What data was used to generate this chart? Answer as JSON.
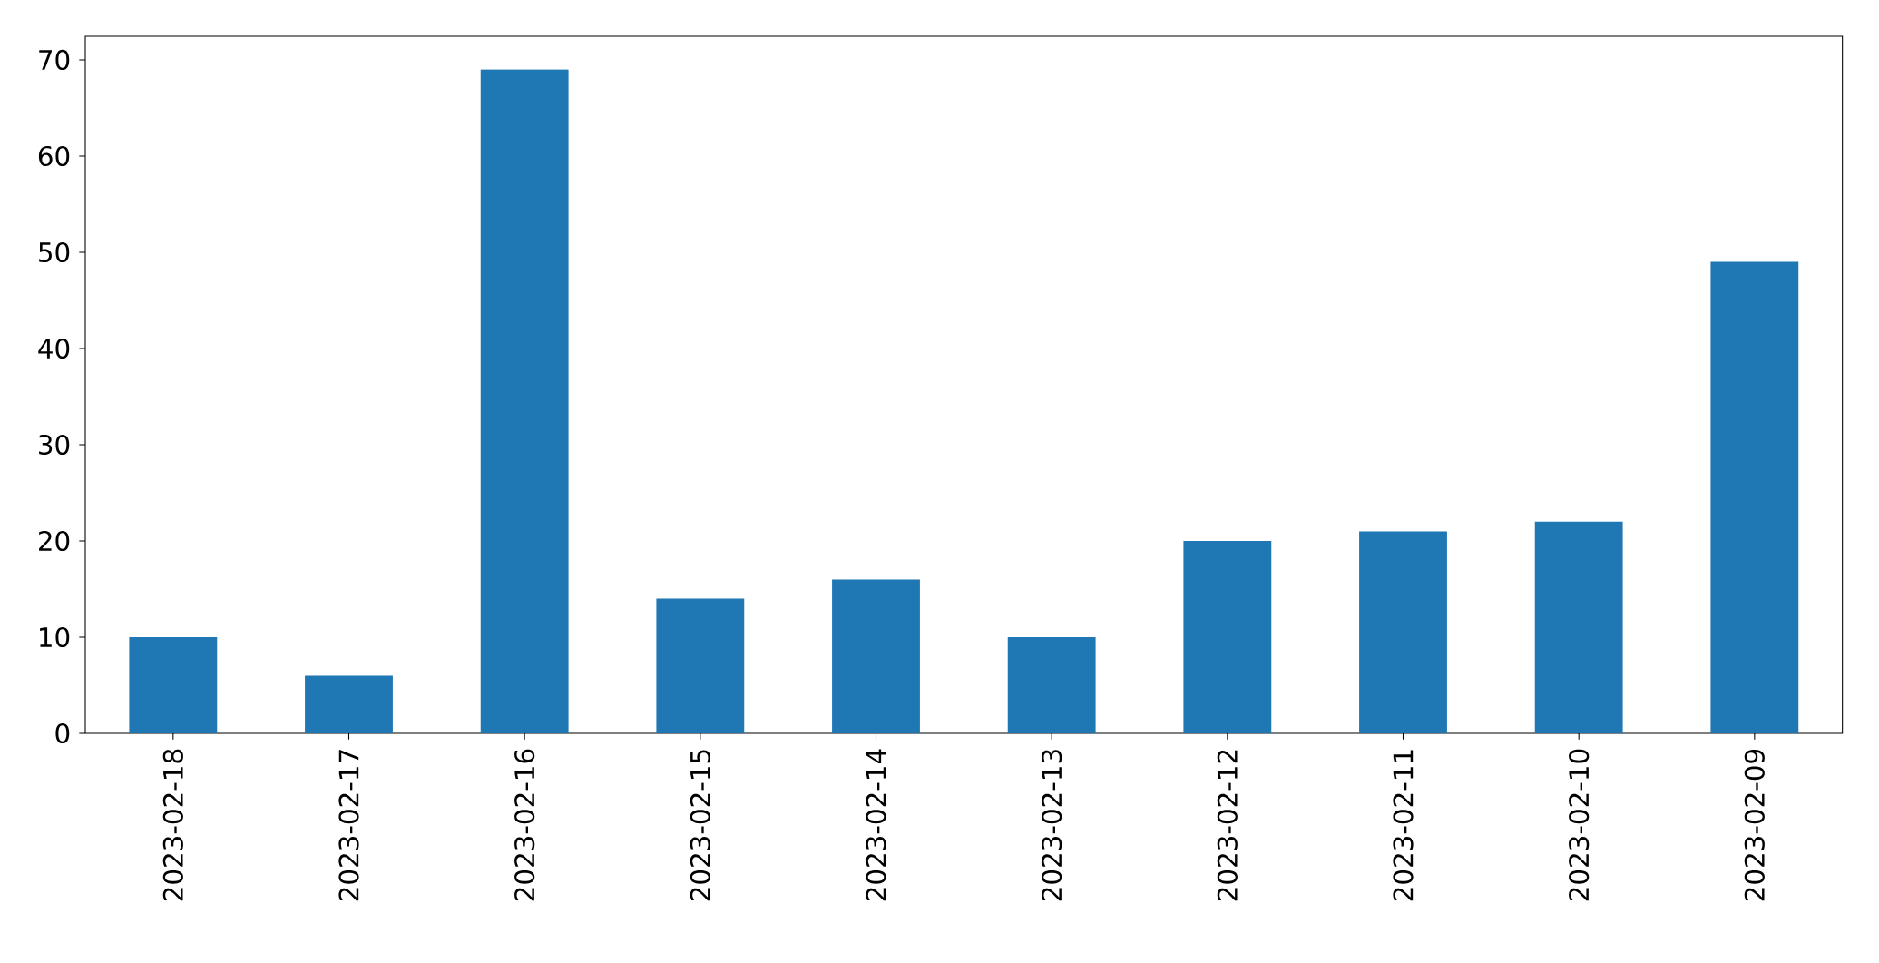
{
  "chart_data": {
    "type": "bar",
    "categories": [
      "2023-02-18",
      "2023-02-17",
      "2023-02-16",
      "2023-02-15",
      "2023-02-14",
      "2023-02-13",
      "2023-02-12",
      "2023-02-11",
      "2023-02-10",
      "2023-02-09"
    ],
    "values": [
      10,
      6,
      69,
      14,
      16,
      10,
      20,
      21,
      22,
      49
    ],
    "color": "#1f77b4",
    "ylim": [
      0,
      72.45
    ],
    "yticks": [
      0,
      10,
      20,
      30,
      40,
      50,
      60,
      70
    ]
  }
}
